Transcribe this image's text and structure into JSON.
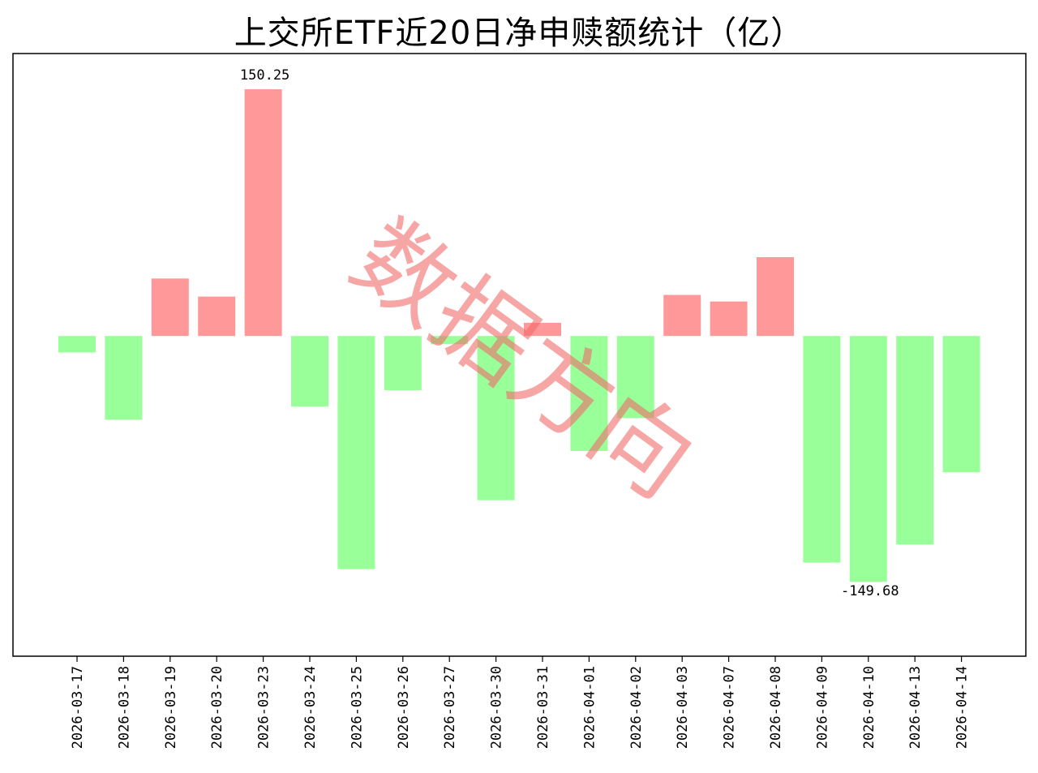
{
  "chart_data": {
    "type": "bar",
    "title": "上交所ETF近20日净申赎额统计（亿）",
    "xlabel": "",
    "ylabel": "",
    "categories": [
      "2026-03-17",
      "2026-03-18",
      "2026-03-19",
      "2026-03-20",
      "2026-03-23",
      "2026-03-24",
      "2026-03-25",
      "2026-03-26",
      "2026-03-27",
      "2026-03-30",
      "2026-03-31",
      "2026-04-01",
      "2026-04-02",
      "2026-04-03",
      "2026-04-07",
      "2026-04-08",
      "2026-04-09",
      "2026-04-10",
      "2026-04-13",
      "2026-04-14"
    ],
    "values": [
      -10,
      -51,
      35,
      24,
      150.25,
      -43,
      -142,
      -33,
      -5,
      -100,
      8,
      -70,
      -50,
      25,
      21,
      48,
      -138,
      -149.68,
      -127,
      -83
    ],
    "ylim": [
      -195,
      172
    ],
    "grid": false,
    "legend": "none",
    "data_labels": [
      {
        "category": "2026-03-23",
        "text": "150.25"
      },
      {
        "category": "2026-04-10",
        "text": "-149.68"
      }
    ],
    "colors": {
      "positive": "#ff9999",
      "negative": "#99ff99",
      "frame": "#000000"
    },
    "watermark": "数据方向"
  }
}
